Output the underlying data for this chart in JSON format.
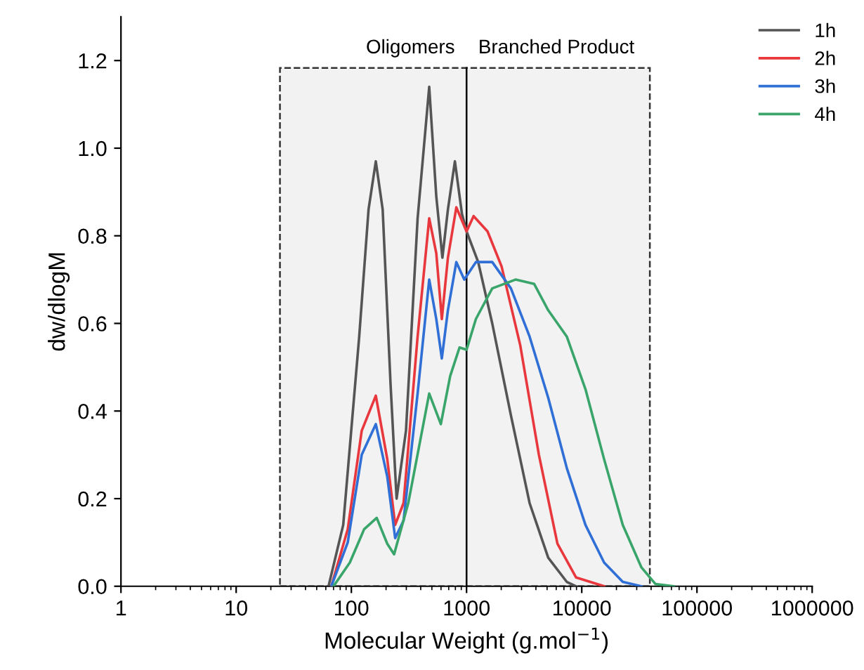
{
  "chart_data": {
    "type": "line",
    "xlabel": "Molecular Weight (g.mol$^{−1}$)",
    "ylabel": "dw/dlogM",
    "log": "x",
    "xlim": [
      1,
      1000000
    ],
    "xticks": [
      1,
      10,
      100,
      1000,
      10000,
      100000,
      1000000
    ],
    "ylim": [
      0,
      1.3
    ],
    "yticks": [
      {
        "value": 0,
        "label": "0.0"
      },
      {
        "value": 0.2,
        "label": "0.2"
      },
      {
        "value": 0.4,
        "label": "0.4"
      },
      {
        "value": 0.6,
        "label": "0.6"
      },
      {
        "value": 0.8,
        "label": "0.8"
      },
      {
        "value": 1.0,
        "label": "1.0"
      },
      {
        "value": 1.2,
        "label": "1.2"
      }
    ],
    "grid": false,
    "legend": "top right",
    "line_style": "solid",
    "marker": "none",
    "bands": [
      {
        "axis": "x",
        "from": 24,
        "to": 39000,
        "color": "#f2f2f2"
      }
    ],
    "ref_lines": [
      {
        "axis": "x",
        "value": 1000,
        "color": "#000000",
        "line_style": "solid"
      }
    ],
    "annotations": [
      "Oligomers",
      "Branched Product"
    ],
    "series": [
      {
        "name": "1h",
        "color": "#555555",
        "x": [
          64,
          85,
          117,
          141,
          163,
          187,
          219,
          247,
          298,
          376,
          474,
          546,
          617,
          689,
          792,
          912,
          1000,
          1262,
          1671,
          2427,
          3524,
          5117,
          7413,
          8933
        ],
        "values": [
          0.005,
          0.14,
          0.57,
          0.86,
          0.97,
          0.86,
          0.46,
          0.2,
          0.355,
          0.84,
          1.14,
          0.89,
          0.75,
          0.86,
          0.97,
          0.85,
          0.81,
          0.74,
          0.6,
          0.39,
          0.19,
          0.065,
          0.01,
          0
        ]
      },
      {
        "name": "2h",
        "color": "#e8383d",
        "x": [
          67,
          93,
          123,
          163,
          205,
          240,
          284,
          376,
          474,
          546,
          610,
          689,
          815,
          1000,
          1151,
          1521,
          2014,
          2924,
          4246,
          6152,
          8933,
          15631
        ],
        "values": [
          0,
          0.13,
          0.355,
          0.435,
          0.29,
          0.14,
          0.19,
          0.57,
          0.84,
          0.76,
          0.61,
          0.75,
          0.865,
          0.81,
          0.845,
          0.81,
          0.73,
          0.55,
          0.3,
          0.097,
          0.02,
          0
        ]
      },
      {
        "name": "3h",
        "color": "#2f6fd6",
        "x": [
          67,
          93,
          123,
          163,
          205,
          240,
          284,
          376,
          474,
          546,
          610,
          689,
          815,
          955,
          1205,
          1671,
          2427,
          3524,
          5117,
          7413,
          10765,
          15631,
          22699,
          32961
        ],
        "values": [
          0,
          0.1,
          0.3,
          0.37,
          0.25,
          0.11,
          0.15,
          0.44,
          0.7,
          0.61,
          0.52,
          0.63,
          0.74,
          0.7,
          0.74,
          0.74,
          0.68,
          0.57,
          0.43,
          0.27,
          0.14,
          0.054,
          0.01,
          0
        ]
      },
      {
        "name": "4h",
        "color": "#3aa56b",
        "x": [
          70,
          97,
          129,
          166,
          205,
          235,
          312,
          474,
          598,
          721,
          869,
          1000,
          1205,
          1671,
          2661,
          3864,
          5117,
          7413,
          10765,
          15631,
          22699,
          32961,
          43652,
          63096
        ],
        "values": [
          0,
          0.054,
          0.13,
          0.156,
          0.097,
          0.073,
          0.19,
          0.44,
          0.37,
          0.48,
          0.545,
          0.54,
          0.61,
          0.68,
          0.7,
          0.69,
          0.63,
          0.57,
          0.45,
          0.29,
          0.14,
          0.043,
          0.005,
          0
        ]
      }
    ]
  }
}
